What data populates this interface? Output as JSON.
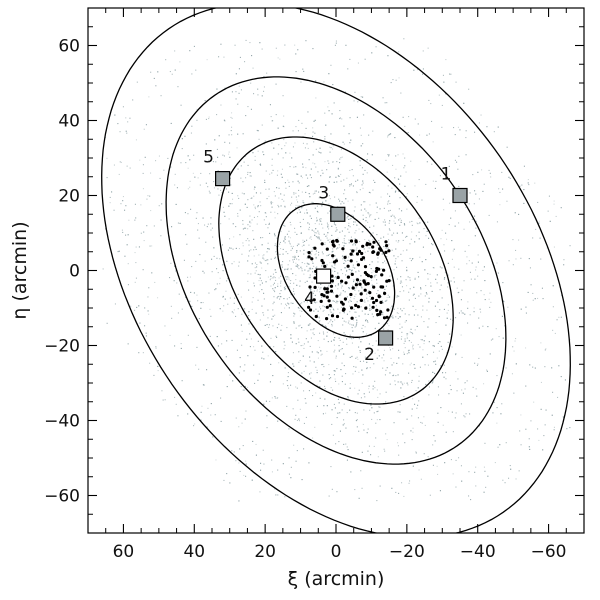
{
  "chart_data": {
    "type": "scatter",
    "xlabel": "ξ (arcmin)",
    "ylabel": "η (arcmin)",
    "xlim": [
      70,
      -70
    ],
    "ylim": [
      -70,
      70
    ],
    "x_ticks": [
      -60,
      -40,
      -20,
      0,
      20,
      40,
      60
    ],
    "y_ticks": [
      -60,
      -40,
      -20,
      0,
      20,
      40,
      60
    ],
    "grid": false,
    "ellipses": {
      "center": [
        0,
        0
      ],
      "axis_ratio": 0.69,
      "major_axis_orientation_deg_from_eta_toward_plus_xi": 39,
      "semi_major_axes": [
        20,
        40,
        58,
        80
      ]
    },
    "background_stars": {
      "color": "#8fa2a6",
      "description": "dense field of faint stellar points, concentrated toward center"
    },
    "fields": [
      {
        "label": "1",
        "xi": -35,
        "eta": 20,
        "filled": true
      },
      {
        "label": "2",
        "xi": -14,
        "eta": -18,
        "filled": true
      },
      {
        "label": "3",
        "xi": -0.5,
        "eta": 15,
        "filled": true
      },
      {
        "label": "4",
        "xi": 3.5,
        "eta": -1.5,
        "filled": false
      },
      {
        "label": "5",
        "xi": 32,
        "eta": 24.5,
        "filled": true
      }
    ],
    "member_points_region": {
      "xi_range": [
        -15,
        8
      ],
      "eta_range": [
        -13,
        8
      ]
    }
  }
}
